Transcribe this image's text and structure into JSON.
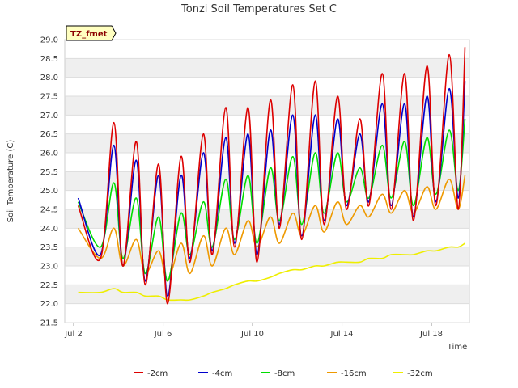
{
  "chart_data": {
    "type": "line",
    "title": "Tonzi Soil Temperatures Set C",
    "xlabel": "Time",
    "ylabel": "Soil Temperature (C)",
    "badge": "TZ_fmet",
    "xlim": [
      1.6,
      19.7
    ],
    "ylim": [
      21.5,
      29.0
    ],
    "x_ticks": [
      {
        "value": 2,
        "label": "Jul 2"
      },
      {
        "value": 6,
        "label": "Jul 6"
      },
      {
        "value": 10,
        "label": "Jul 10"
      },
      {
        "value": 14,
        "label": "Jul 14"
      },
      {
        "value": 18,
        "label": "Jul 18"
      }
    ],
    "y_ticks": [
      "21.5",
      "22.0",
      "22.5",
      "23.0",
      "23.5",
      "24.0",
      "24.5",
      "25.0",
      "25.5",
      "26.0",
      "26.5",
      "27.0",
      "27.5",
      "28.0",
      "28.5",
      "29.0"
    ],
    "grid": true,
    "legend_position": "bottom",
    "colors": {
      "-2cm": "#dd0000",
      "-4cm": "#0000cc",
      "-8cm": "#00dd00",
      "-16cm": "#ee9900",
      "-32cm": "#eeee00"
    },
    "x": [
      2.2,
      3.2,
      3.8,
      4.2,
      4.8,
      5.2,
      5.8,
      6.2,
      6.8,
      7.2,
      7.8,
      8.2,
      8.8,
      9.2,
      9.8,
      10.2,
      10.8,
      11.2,
      11.8,
      12.2,
      12.8,
      13.2,
      13.8,
      14.2,
      14.8,
      15.2,
      15.8,
      16.2,
      16.8,
      17.2,
      17.8,
      18.2,
      18.8,
      19.2,
      19.5
    ],
    "series": [
      {
        "name": "-2cm",
        "values": [
          24.6,
          23.2,
          26.8,
          23.0,
          26.3,
          22.5,
          25.7,
          22.0,
          25.9,
          23.1,
          26.5,
          23.3,
          27.2,
          23.5,
          27.2,
          23.1,
          27.4,
          24.0,
          27.8,
          23.7,
          27.9,
          24.1,
          27.5,
          24.5,
          26.9,
          24.6,
          28.1,
          24.5,
          28.1,
          24.2,
          28.3,
          24.6,
          28.6,
          24.5,
          28.8
        ]
      },
      {
        "name": "-4cm",
        "values": [
          24.8,
          23.3,
          26.2,
          23.0,
          25.8,
          22.6,
          25.4,
          22.2,
          25.4,
          23.2,
          26.0,
          23.4,
          26.4,
          23.6,
          26.5,
          23.3,
          26.6,
          24.1,
          27.0,
          23.8,
          27.0,
          24.2,
          26.9,
          24.6,
          26.5,
          24.7,
          27.3,
          24.6,
          27.3,
          24.3,
          27.5,
          24.7,
          27.7,
          24.8,
          27.9
        ]
      },
      {
        "name": "-8cm",
        "values": [
          24.7,
          23.5,
          25.2,
          23.2,
          24.8,
          22.8,
          24.3,
          22.6,
          24.4,
          23.3,
          24.7,
          23.5,
          25.3,
          23.7,
          25.4,
          23.6,
          25.6,
          24.2,
          25.9,
          24.1,
          26.0,
          24.4,
          26.0,
          24.7,
          25.6,
          24.8,
          26.2,
          24.8,
          26.3,
          24.6,
          26.4,
          24.9,
          26.6,
          25.0,
          26.9
        ]
      },
      {
        "name": "-16cm",
        "values": [
          24.0,
          23.2,
          24.0,
          23.0,
          23.7,
          22.8,
          23.4,
          22.6,
          23.6,
          22.8,
          23.8,
          23.0,
          24.0,
          23.3,
          24.2,
          23.5,
          24.3,
          23.6,
          24.4,
          23.8,
          24.6,
          23.9,
          24.7,
          24.1,
          24.6,
          24.3,
          24.9,
          24.4,
          25.0,
          24.4,
          25.1,
          24.5,
          25.3,
          24.5,
          25.4
        ]
      },
      {
        "name": "-32cm",
        "values": [
          22.3,
          22.3,
          22.4,
          22.3,
          22.3,
          22.2,
          22.2,
          22.1,
          22.1,
          22.1,
          22.2,
          22.3,
          22.4,
          22.5,
          22.6,
          22.6,
          22.7,
          22.8,
          22.9,
          22.9,
          23.0,
          23.0,
          23.1,
          23.1,
          23.1,
          23.2,
          23.2,
          23.3,
          23.3,
          23.3,
          23.4,
          23.4,
          23.5,
          23.5,
          23.6
        ]
      }
    ]
  }
}
